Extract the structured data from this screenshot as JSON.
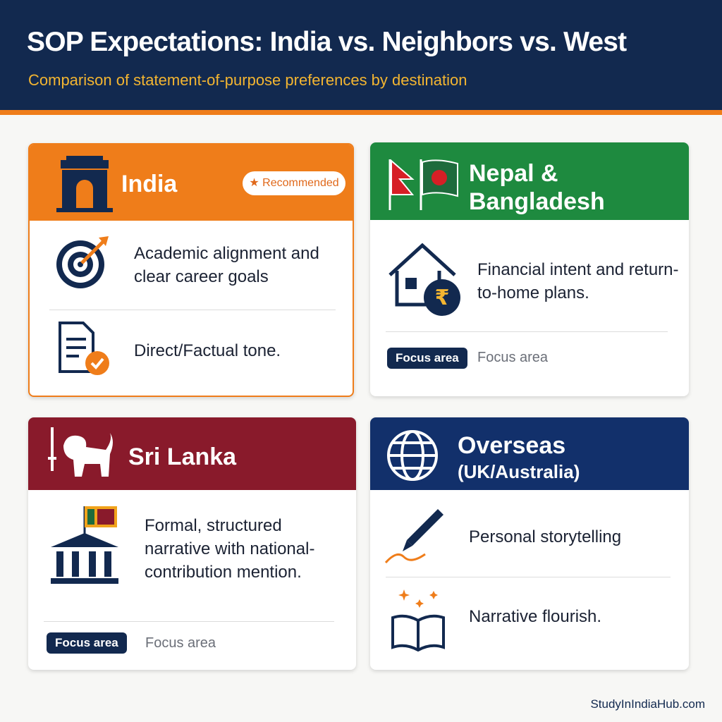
{
  "header": {
    "title": "SOP Expectations: India vs. Neighbors vs. West",
    "subtitle": "Comparison of statement-of-purpose preferences by destination"
  },
  "cards": [
    {
      "title": "India",
      "badge": "★ Recommended",
      "items": [
        "Academic alignment and clear career goals",
        "Direct/Factual tone."
      ]
    },
    {
      "title": "Nepal & Bangladesh",
      "items": [
        "Financial intent and return-to-home plans."
      ],
      "tags": [
        "Focus area",
        "Focus area"
      ]
    },
    {
      "title": "Sri Lanka",
      "items": [
        "Formal, structured narrative with national-contribution mention."
      ],
      "tags": [
        "Focus area",
        "Focus area"
      ]
    },
    {
      "title": "Overseas",
      "subtitle": "(UK/Australia)",
      "items": [
        "Personal storytelling",
        "Narrative flourish."
      ]
    }
  ],
  "footer": "StudyInIndiaHub.com"
}
